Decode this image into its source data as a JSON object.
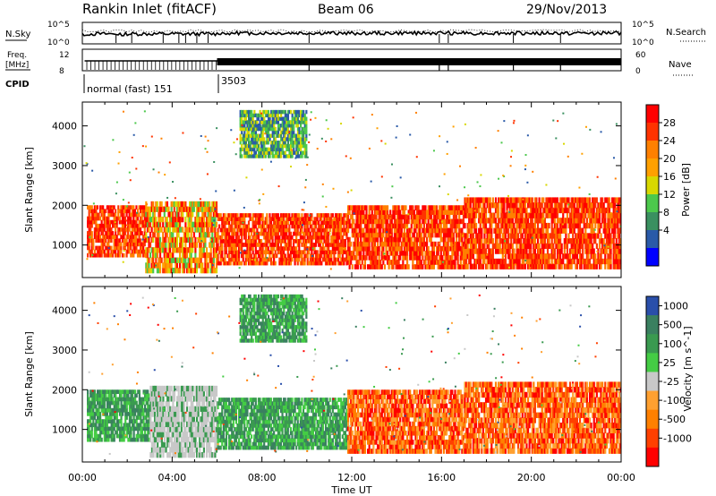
{
  "header": {
    "station": "Rankin Inlet (fitACF)",
    "beam": "Beam 06",
    "date": "29/Nov/2013"
  },
  "top_panels": {
    "nsky_label": "N.Sky",
    "nsearch_label": "N.Search",
    "nsky_ticks": [
      "10^5",
      "10^0"
    ],
    "nsearch_ticks": [
      "10^5",
      "10^0"
    ],
    "freq_label": "Freq.",
    "freq_unit": "[MHz]",
    "freq_ticks": [
      "12",
      "8"
    ],
    "nave_label": "Nave",
    "nave_ticks": [
      "60",
      "0"
    ],
    "cpid_label": "CPID",
    "cpid_segments": [
      {
        "label": "normal (fast) 151"
      },
      {
        "label": "3503"
      }
    ]
  },
  "chart_data": [
    {
      "type": "heatmap",
      "ylabel": "Slant Range [km]",
      "xlabel": "Time UT",
      "x_ticks": [
        "00:00",
        "04:00",
        "08:00",
        "12:00",
        "16:00",
        "20:00",
        "00:00"
      ],
      "y_ticks": [
        1000,
        2000,
        3000,
        4000
      ],
      "ylim": [
        180,
        4600
      ],
      "xlim_hours": [
        0,
        24
      ],
      "colorbar": {
        "label": "Power [dB]",
        "ticks": [
          "28",
          "24",
          "20",
          "16",
          "12",
          "8",
          "4"
        ],
        "colors": [
          "#ff0000",
          "#ff3300",
          "#ff8000",
          "#ffa000",
          "#d8d800",
          "#4cc84c",
          "#3a9060",
          "#2a5aa8",
          "#0000ff"
        ]
      },
      "patches": [
        {
          "t0": 0.2,
          "t1": 2.8,
          "r0": 700,
          "r1": 2000,
          "level": "high"
        },
        {
          "t0": 2.8,
          "t1": 6.0,
          "r0": 300,
          "r1": 2100,
          "level": "mid"
        },
        {
          "t0": 6.0,
          "t1": 11.8,
          "r0": 500,
          "r1": 1800,
          "level": "high"
        },
        {
          "t0": 11.8,
          "t1": 17.0,
          "r0": 400,
          "r1": 2000,
          "level": "high"
        },
        {
          "t0": 17.0,
          "t1": 24.0,
          "r0": 400,
          "r1": 2200,
          "level": "high"
        },
        {
          "t0": 7.0,
          "t1": 10.0,
          "r0": 3200,
          "r1": 4400,
          "level": "low"
        }
      ]
    },
    {
      "type": "heatmap",
      "ylabel": "Slant Range [km]",
      "xlabel": "Time UT",
      "x_ticks": [
        "00:00",
        "04:00",
        "08:00",
        "12:00",
        "16:00",
        "20:00",
        "00:00"
      ],
      "y_ticks": [
        1000,
        2000,
        3000,
        4000
      ],
      "ylim": [
        180,
        4600
      ],
      "xlim_hours": [
        0,
        24
      ],
      "colorbar": {
        "label": "Velocity [m s^-1]",
        "ticks": [
          "1000",
          "500",
          "100",
          "25",
          "-25",
          "-100",
          "-500",
          "-1000"
        ],
        "colors": [
          "#2a4faa",
          "#3a8060",
          "#3a9a50",
          "#44cc44",
          "#c8c8c8",
          "#ffa030",
          "#ff8000",
          "#ff4000",
          "#ff0000"
        ]
      },
      "patches": [
        {
          "t0": 0.2,
          "t1": 3.0,
          "r0": 700,
          "r1": 2000,
          "level": "green"
        },
        {
          "t0": 3.0,
          "t1": 6.0,
          "r0": 300,
          "r1": 2100,
          "level": "grey"
        },
        {
          "t0": 6.0,
          "t1": 11.8,
          "r0": 500,
          "r1": 1800,
          "level": "green"
        },
        {
          "t0": 11.8,
          "t1": 17.0,
          "r0": 400,
          "r1": 2000,
          "level": "orange"
        },
        {
          "t0": 17.0,
          "t1": 24.0,
          "r0": 400,
          "r1": 2200,
          "level": "orange"
        },
        {
          "t0": 7.0,
          "t1": 10.0,
          "r0": 3200,
          "r1": 4400,
          "level": "green"
        }
      ]
    }
  ]
}
